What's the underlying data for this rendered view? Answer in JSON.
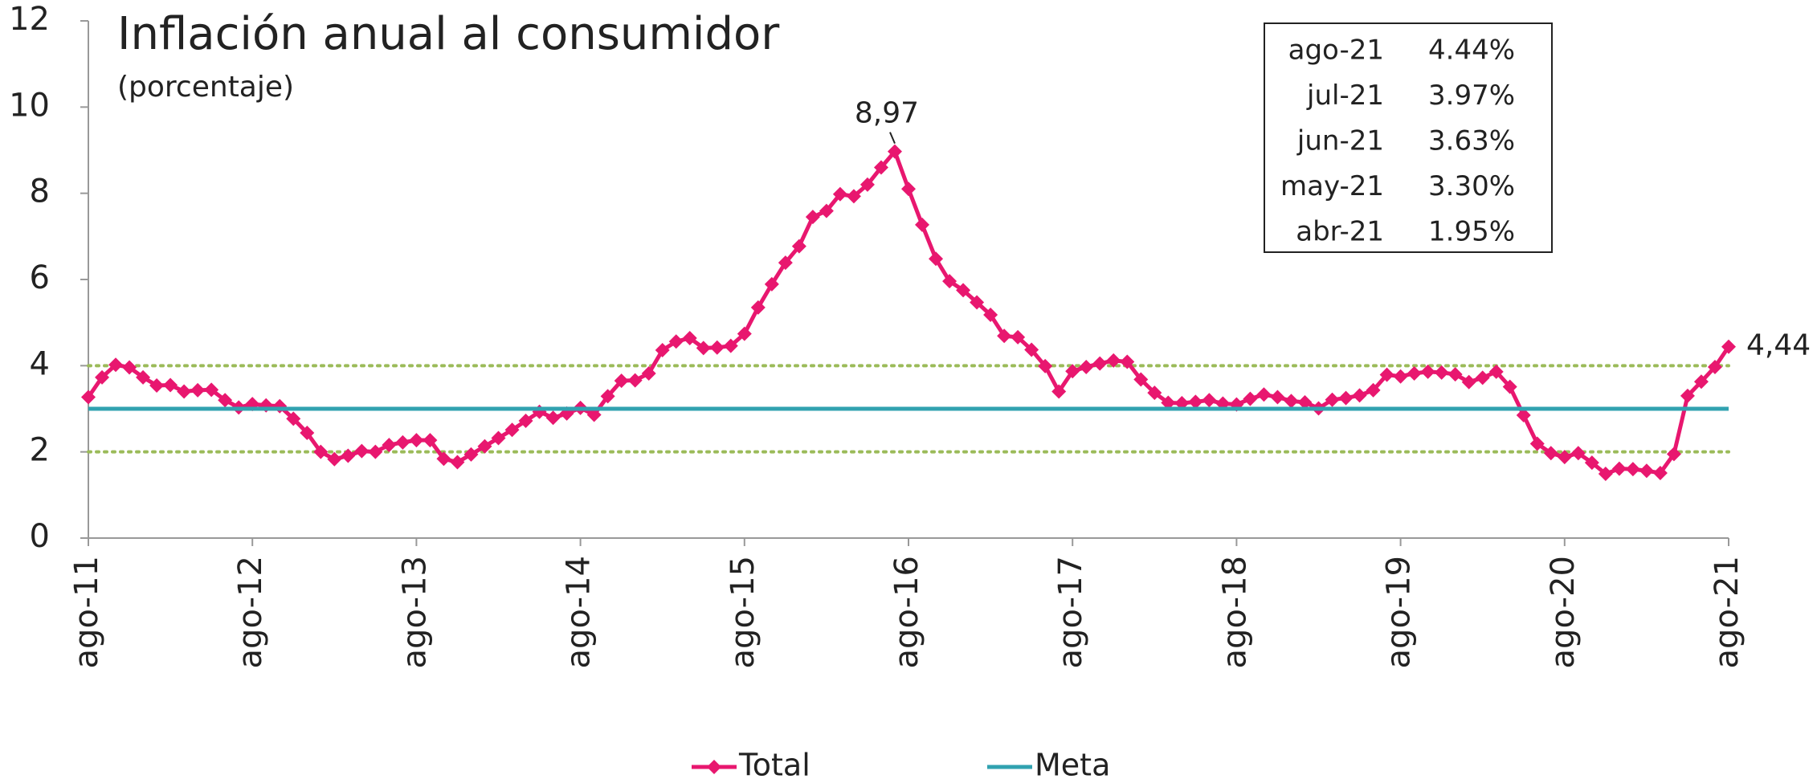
{
  "chart_data": {
    "type": "line",
    "title": "Inflación anual al consumidor",
    "subtitle": "(porcentaje)",
    "categories": [
      "ago-11",
      null,
      null,
      null,
      null,
      null,
      null,
      null,
      null,
      null,
      null,
      null,
      "ago-12",
      null,
      null,
      null,
      null,
      null,
      null,
      null,
      null,
      null,
      null,
      null,
      "ago-13",
      null,
      null,
      null,
      null,
      null,
      null,
      null,
      null,
      null,
      null,
      null,
      "ago-14",
      null,
      null,
      null,
      null,
      null,
      null,
      null,
      null,
      null,
      null,
      null,
      "ago-15",
      null,
      null,
      null,
      null,
      null,
      null,
      null,
      null,
      null,
      null,
      null,
      "ago-16",
      null,
      null,
      null,
      null,
      null,
      null,
      null,
      null,
      null,
      null,
      null,
      "ago-17",
      null,
      null,
      null,
      null,
      null,
      null,
      null,
      null,
      null,
      null,
      null,
      "ago-18",
      null,
      null,
      null,
      null,
      null,
      null,
      null,
      null,
      null,
      null,
      null,
      "ago-19",
      null,
      null,
      null,
      null,
      null,
      null,
      null,
      null,
      null,
      null,
      null,
      "ago-20",
      null,
      null,
      null,
      null,
      null,
      null,
      null,
      null,
      null,
      null,
      null,
      "ago-21"
    ],
    "series": [
      {
        "name": "Total",
        "color": "#e8176f",
        "marker": "diamond",
        "values": [
          3.27,
          3.73,
          4.02,
          3.96,
          3.73,
          3.54,
          3.55,
          3.4,
          3.43,
          3.44,
          3.2,
          3.03,
          3.11,
          3.08,
          3.06,
          2.77,
          2.44,
          2.0,
          1.83,
          1.91,
          2.02,
          2.0,
          2.16,
          2.22,
          2.27,
          2.27,
          1.84,
          1.76,
          1.94,
          2.13,
          2.32,
          2.51,
          2.72,
          2.93,
          2.79,
          2.89,
          3.02,
          2.86,
          3.29,
          3.65,
          3.66,
          3.82,
          4.36,
          4.56,
          4.64,
          4.41,
          4.42,
          4.46,
          4.74,
          5.35,
          5.89,
          6.39,
          6.77,
          7.45,
          7.59,
          7.98,
          7.93,
          8.2,
          8.6,
          8.97,
          8.1,
          7.27,
          6.48,
          5.96,
          5.75,
          5.47,
          5.18,
          4.69,
          4.66,
          4.37,
          3.99,
          3.4,
          3.87,
          3.97,
          4.05,
          4.12,
          4.09,
          3.68,
          3.37,
          3.14,
          3.13,
          3.16,
          3.2,
          3.12,
          3.1,
          3.23,
          3.33,
          3.27,
          3.18,
          3.15,
          3.01,
          3.21,
          3.25,
          3.31,
          3.43,
          3.79,
          3.75,
          3.82,
          3.86,
          3.84,
          3.8,
          3.62,
          3.72,
          3.86,
          3.51,
          2.85,
          2.19,
          1.97,
          1.88,
          1.97,
          1.75,
          1.49,
          1.61,
          1.6,
          1.56,
          1.51,
          1.95,
          3.3,
          3.63,
          3.97,
          4.44
        ],
        "value_labels": [
          null,
          null,
          null,
          null,
          null,
          null,
          null,
          null,
          null,
          null,
          null,
          null,
          null,
          null,
          null,
          null,
          null,
          null,
          null,
          null,
          null,
          null,
          null,
          null,
          null,
          null,
          null,
          null,
          null,
          null,
          null,
          null,
          null,
          null,
          null,
          null,
          null,
          null,
          null,
          null,
          null,
          null,
          null,
          null,
          null,
          null,
          null,
          null,
          null,
          null,
          null,
          null,
          null,
          null,
          null,
          null,
          null,
          null,
          null,
          "8,97",
          null,
          null,
          null,
          null,
          null,
          null,
          null,
          null,
          null,
          null,
          null,
          null,
          null,
          null,
          null,
          null,
          null,
          null,
          null,
          null,
          null,
          null,
          null,
          null,
          null,
          null,
          null,
          null,
          null,
          null,
          null,
          null,
          null,
          null,
          null,
          null,
          null,
          null,
          null,
          null,
          null,
          null,
          null,
          null,
          null,
          null,
          null,
          null,
          null,
          null,
          null,
          null,
          null,
          null,
          null,
          null,
          null,
          null,
          null,
          null,
          "4,44"
        ]
      },
      {
        "name": "Meta",
        "color": "#31a2b0",
        "values": [
          3,
          3,
          3,
          3,
          3,
          3,
          3,
          3,
          3,
          3,
          3,
          3,
          3,
          3,
          3,
          3,
          3,
          3,
          3,
          3,
          3,
          3,
          3,
          3,
          3,
          3,
          3,
          3,
          3,
          3,
          3,
          3,
          3,
          3,
          3,
          3,
          3,
          3,
          3,
          3,
          3,
          3,
          3,
          3,
          3,
          3,
          3,
          3,
          3,
          3,
          3,
          3,
          3,
          3,
          3,
          3,
          3,
          3,
          3,
          3,
          3,
          3,
          3,
          3,
          3,
          3,
          3,
          3,
          3,
          3,
          3,
          3,
          3,
          3,
          3,
          3,
          3,
          3,
          3,
          3,
          3,
          3,
          3,
          3,
          3,
          3,
          3,
          3,
          3,
          3,
          3,
          3,
          3,
          3,
          3,
          3,
          3,
          3,
          3,
          3,
          3,
          3,
          3,
          3,
          3,
          3,
          3,
          3,
          3,
          3,
          3,
          3,
          3,
          3,
          3,
          3,
          3,
          3,
          3,
          3,
          3
        ]
      }
    ],
    "reference_lines": [
      {
        "value": 2,
        "color": "#9bbb59"
      },
      {
        "value": 4,
        "color": "#9bbb59"
      }
    ],
    "ylim": [
      0,
      12
    ],
    "yticks": [
      0,
      2,
      4,
      6,
      8,
      10,
      12
    ],
    "legend": "bottom",
    "table": [
      {
        "label": "ago-21",
        "value": "4.44%"
      },
      {
        "label": "jul-21",
        "value": "3.97%"
      },
      {
        "label": "jun-21",
        "value": "3.63%"
      },
      {
        "label": "may-21",
        "value": "3.30%"
      },
      {
        "label": "abr-21",
        "value": "1.95%"
      }
    ]
  }
}
